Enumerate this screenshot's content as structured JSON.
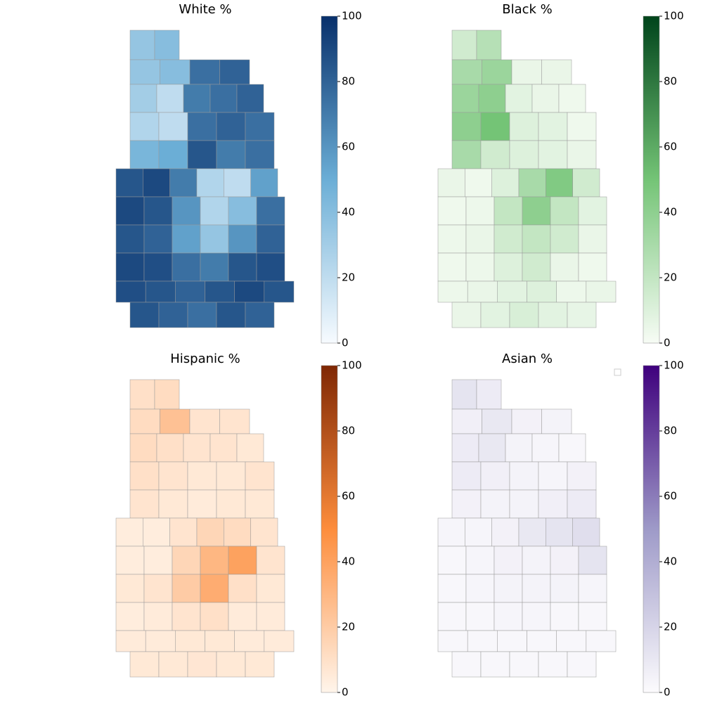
{
  "maps": [
    {
      "title": "White %",
      "lim": [
        0,
        100
      ],
      "ticks": [
        0,
        20,
        40,
        60,
        80,
        100
      ],
      "colors": [
        "#f7fbff",
        "#6baed6",
        "#08306b"
      ],
      "values": [
        35,
        40,
        35,
        40,
        75,
        80,
        30,
        20,
        70,
        75,
        80,
        25,
        20,
        75,
        80,
        75,
        45,
        50,
        85,
        70,
        75,
        85,
        90,
        70,
        25,
        20,
        55,
        90,
        85,
        60,
        25,
        40,
        75,
        85,
        80,
        55,
        35,
        60,
        80,
        90,
        88,
        75,
        70,
        85,
        88,
        88,
        85,
        80,
        85,
        90,
        85,
        85,
        80,
        75,
        85,
        80
      ]
    },
    {
      "title": "Black %",
      "lim": [
        0,
        100
      ],
      "ticks": [
        0,
        20,
        40,
        60,
        80,
        100
      ],
      "colors": [
        "#f7fcf5",
        "#74c476",
        "#00441b"
      ],
      "values": [
        15,
        25,
        30,
        35,
        5,
        5,
        35,
        40,
        8,
        5,
        3,
        40,
        50,
        10,
        8,
        3,
        30,
        15,
        10,
        8,
        5,
        5,
        3,
        10,
        30,
        45,
        15,
        3,
        4,
        20,
        40,
        20,
        8,
        4,
        5,
        15,
        20,
        15,
        5,
        3,
        4,
        10,
        15,
        5,
        3,
        4,
        5,
        8,
        10,
        4,
        5,
        5,
        8,
        12,
        8,
        6
      ]
    },
    {
      "title": "Hispanic %",
      "lim": [
        0,
        100
      ],
      "ticks": [
        0,
        20,
        40,
        60,
        80,
        100
      ],
      "colors": [
        "#fff5eb",
        "#fd8d3c",
        "#7f2704"
      ],
      "values": [
        10,
        12,
        12,
        25,
        8,
        8,
        12,
        10,
        8,
        8,
        6,
        10,
        8,
        6,
        6,
        8,
        8,
        6,
        5,
        6,
        6,
        4,
        4,
        8,
        15,
        12,
        8,
        4,
        4,
        15,
        30,
        40,
        8,
        6,
        8,
        20,
        35,
        10,
        6,
        4,
        5,
        8,
        10,
        5,
        5,
        5,
        5,
        6,
        6,
        5,
        5,
        6,
        6,
        7,
        6,
        6
      ]
    },
    {
      "title": "Asian %",
      "lim": [
        0,
        100
      ],
      "ticks": [
        0,
        20,
        40,
        60,
        80,
        100
      ],
      "colors": [
        "#fcfbfd",
        "#9e9ac8",
        "#3f007d"
      ],
      "values": [
        12,
        8,
        6,
        10,
        5,
        4,
        8,
        10,
        4,
        3,
        2,
        8,
        6,
        4,
        3,
        5,
        5,
        4,
        4,
        6,
        8,
        3,
        3,
        5,
        10,
        12,
        15,
        2,
        3,
        5,
        4,
        5,
        12,
        2,
        3,
        4,
        4,
        4,
        3,
        2,
        2,
        3,
        3,
        2,
        2,
        2,
        2,
        2,
        2,
        2,
        2,
        2,
        2,
        2,
        2,
        2
      ]
    }
  ]
}
